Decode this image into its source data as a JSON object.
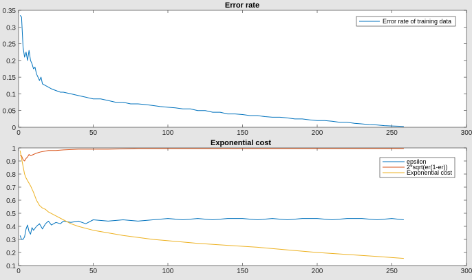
{
  "chart_data": [
    {
      "type": "line",
      "title": "Error rate",
      "xlabel": "",
      "ylabel": "",
      "xlim": [
        0,
        300
      ],
      "ylim": [
        0,
        0.35
      ],
      "xticks": [
        0,
        50,
        100,
        150,
        200,
        250,
        300
      ],
      "yticks": [
        0,
        0.05,
        0.1,
        0.15,
        0.2,
        0.25,
        0.3,
        0.35
      ],
      "xtick_labels": [
        "0",
        "50",
        "100",
        "150",
        "200",
        "250",
        "300"
      ],
      "ytick_labels": [
        "0",
        "0.05",
        "0.1",
        "0.15",
        "0.2",
        "0.25",
        "0.3",
        "0.35"
      ],
      "grid": false,
      "legend": "top-right",
      "series": [
        {
          "name": "Error rate of training data",
          "color": "#0072bd",
          "x": [
            1,
            2,
            3,
            4,
            5,
            6,
            7,
            8,
            9,
            10,
            11,
            12,
            13,
            14,
            15,
            16,
            18,
            20,
            22,
            25,
            28,
            30,
            35,
            40,
            45,
            50,
            55,
            60,
            65,
            70,
            75,
            80,
            85,
            90,
            95,
            100,
            105,
            110,
            115,
            120,
            125,
            130,
            135,
            140,
            145,
            150,
            155,
            160,
            165,
            170,
            175,
            180,
            185,
            190,
            195,
            200,
            205,
            210,
            215,
            220,
            225,
            230,
            235,
            240,
            245,
            250,
            255,
            258
          ],
          "y": [
            0.335,
            0.33,
            0.24,
            0.21,
            0.225,
            0.2,
            0.23,
            0.2,
            0.19,
            0.175,
            0.18,
            0.16,
            0.15,
            0.14,
            0.15,
            0.13,
            0.125,
            0.12,
            0.115,
            0.11,
            0.105,
            0.105,
            0.1,
            0.095,
            0.09,
            0.085,
            0.085,
            0.08,
            0.075,
            0.075,
            0.07,
            0.07,
            0.068,
            0.065,
            0.062,
            0.06,
            0.058,
            0.055,
            0.055,
            0.05,
            0.05,
            0.045,
            0.045,
            0.04,
            0.04,
            0.038,
            0.035,
            0.035,
            0.032,
            0.03,
            0.03,
            0.028,
            0.025,
            0.025,
            0.022,
            0.02,
            0.02,
            0.018,
            0.015,
            0.015,
            0.012,
            0.01,
            0.008,
            0.007,
            0.005,
            0.004,
            0.003,
            0.002
          ]
        }
      ]
    },
    {
      "type": "line",
      "title": "Exponential cost",
      "xlabel": "",
      "ylabel": "",
      "xlim": [
        0,
        300
      ],
      "ylim": [
        0.1,
        1
      ],
      "xticks": [
        0,
        50,
        100,
        150,
        200,
        250,
        300
      ],
      "yticks": [
        0.1,
        0.2,
        0.3,
        0.4,
        0.5,
        0.6,
        0.7,
        0.8,
        0.9,
        1
      ],
      "xtick_labels": [
        "0",
        "50",
        "100",
        "150",
        "200",
        "250",
        "300"
      ],
      "ytick_labels": [
        "0.1",
        "0.2",
        "0.3",
        "0.4",
        "0.5",
        "0.6",
        "0.7",
        "0.8",
        "0.9",
        "1"
      ],
      "grid": false,
      "legend": "top-right",
      "series": [
        {
          "name": "epsilon",
          "color": "#0072bd",
          "x": [
            1,
            2,
            3,
            4,
            5,
            6,
            7,
            8,
            9,
            10,
            12,
            14,
            16,
            18,
            20,
            22,
            25,
            28,
            30,
            35,
            40,
            45,
            50,
            60,
            70,
            80,
            90,
            100,
            110,
            120,
            130,
            140,
            150,
            160,
            170,
            180,
            190,
            200,
            210,
            220,
            230,
            240,
            250,
            258
          ],
          "y": [
            0.33,
            0.3,
            0.3,
            0.32,
            0.38,
            0.41,
            0.36,
            0.34,
            0.39,
            0.37,
            0.4,
            0.42,
            0.38,
            0.42,
            0.44,
            0.41,
            0.43,
            0.42,
            0.44,
            0.43,
            0.44,
            0.42,
            0.45,
            0.44,
            0.45,
            0.44,
            0.45,
            0.46,
            0.45,
            0.46,
            0.45,
            0.46,
            0.46,
            0.45,
            0.46,
            0.45,
            0.46,
            0.46,
            0.45,
            0.46,
            0.46,
            0.45,
            0.46,
            0.45
          ]
        },
        {
          "name": "2*sqrt(er(1-er))",
          "color": "#d95319",
          "x": [
            1,
            2,
            3,
            4,
            5,
            6,
            7,
            8,
            10,
            12,
            15,
            20,
            25,
            30,
            40,
            50,
            60,
            80,
            100,
            150,
            200,
            258
          ],
          "y": [
            0.94,
            0.94,
            0.91,
            0.9,
            0.92,
            0.93,
            0.95,
            0.94,
            0.95,
            0.96,
            0.97,
            0.98,
            0.98,
            0.985,
            0.99,
            0.99,
            0.99,
            0.995,
            0.995,
            0.995,
            0.995,
            0.995
          ]
        },
        {
          "name": "Exponential cost",
          "color": "#edb120",
          "x": [
            1,
            2,
            3,
            4,
            5,
            6,
            8,
            10,
            12,
            14,
            16,
            18,
            20,
            25,
            30,
            35,
            40,
            50,
            60,
            70,
            80,
            90,
            100,
            120,
            140,
            160,
            180,
            200,
            220,
            240,
            258
          ],
          "y": [
            0.98,
            0.92,
            0.86,
            0.8,
            0.77,
            0.75,
            0.71,
            0.66,
            0.6,
            0.56,
            0.54,
            0.53,
            0.51,
            0.48,
            0.45,
            0.42,
            0.4,
            0.37,
            0.35,
            0.33,
            0.315,
            0.3,
            0.29,
            0.27,
            0.255,
            0.24,
            0.22,
            0.2,
            0.185,
            0.17,
            0.155
          ]
        }
      ]
    }
  ]
}
